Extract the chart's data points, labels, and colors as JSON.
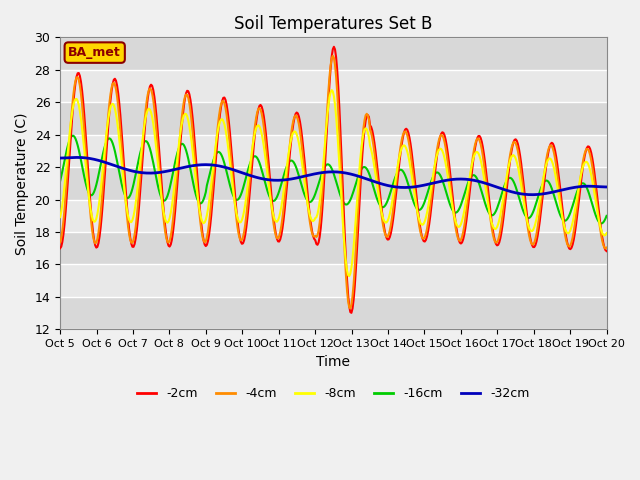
{
  "title": "Soil Temperatures Set B",
  "xlabel": "Time",
  "ylabel": "Soil Temperature (C)",
  "ylim": [
    12,
    30
  ],
  "xlim": [
    0,
    15
  ],
  "xtick_labels": [
    "Oct 5",
    "Oct 6",
    "Oct 7",
    "Oct 8",
    "Oct 9",
    "Oct 10",
    "Oct 11",
    "Oct 12",
    "Oct 13",
    "Oct 14",
    "Oct 15",
    "Oct 16",
    "Oct 17",
    "Oct 18",
    "Oct 19",
    "Oct 20"
  ],
  "annotation": "BA_met",
  "annotation_bg": "#FFD700",
  "annotation_border": "#8B0000",
  "fig_bg": "#F0F0F0",
  "plot_bg": "#E8E8E8",
  "band_light": "#E8E8E8",
  "band_dark": "#D8D8D8",
  "grid_color": "#FFFFFF",
  "series_colors": [
    "#FF0000",
    "#FF8C00",
    "#FFFF00",
    "#00CC00",
    "#0000BB"
  ],
  "series_linewidths": [
    1.5,
    1.5,
    1.5,
    1.5,
    2.0
  ],
  "series_labels": [
    "-2cm",
    "-4cm",
    "-8cm",
    "-16cm",
    "-32cm"
  ]
}
